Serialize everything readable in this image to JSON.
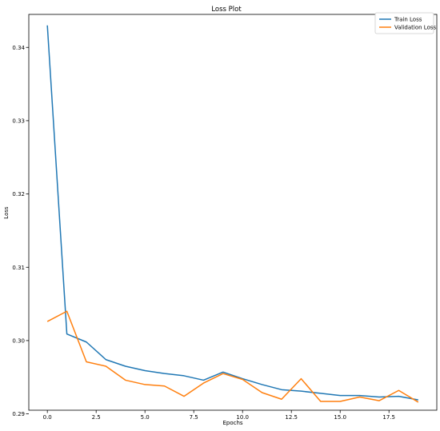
{
  "chart_data": {
    "type": "line",
    "title": "Loss Plot",
    "xlabel": "Epochs",
    "ylabel": "Loss",
    "xlim": [
      -0.95,
      19.95
    ],
    "ylim": [
      0.2905,
      0.3445
    ],
    "xticks": [
      0.0,
      2.5,
      5.0,
      7.5,
      10.0,
      12.5,
      15.0,
      17.5
    ],
    "xtick_labels": [
      "0.0",
      "2.5",
      "5.0",
      "7.5",
      "10.0",
      "12.5",
      "15.0",
      "17.5"
    ],
    "yticks": [
      0.29,
      0.3,
      0.31,
      0.32,
      0.33,
      0.34
    ],
    "ytick_labels": [
      "0.29",
      "0.30",
      "0.31",
      "0.32",
      "0.33",
      "0.34"
    ],
    "grid": false,
    "legend_position": "top-right",
    "x": [
      0,
      1,
      2,
      3,
      4,
      5,
      6,
      7,
      8,
      9,
      10,
      11,
      12,
      13,
      14,
      15,
      16,
      17,
      18,
      19
    ],
    "series": [
      {
        "name": "Train Loss",
        "color": "#1f77b4",
        "values": [
          0.343,
          0.3009,
          0.2998,
          0.2974,
          0.2965,
          0.2959,
          0.2955,
          0.2952,
          0.2946,
          0.2957,
          0.2948,
          0.294,
          0.2933,
          0.2931,
          0.2928,
          0.2925,
          0.2925,
          0.2923,
          0.2924,
          0.2919
        ]
      },
      {
        "name": "Validation Loss",
        "color": "#ff7f0e",
        "values": [
          0.3026,
          0.304,
          0.2971,
          0.2965,
          0.2946,
          0.294,
          0.2938,
          0.2924,
          0.2942,
          0.2955,
          0.2947,
          0.2929,
          0.292,
          0.2948,
          0.2917,
          0.2917,
          0.2923,
          0.2918,
          0.2932,
          0.2916
        ]
      }
    ]
  }
}
